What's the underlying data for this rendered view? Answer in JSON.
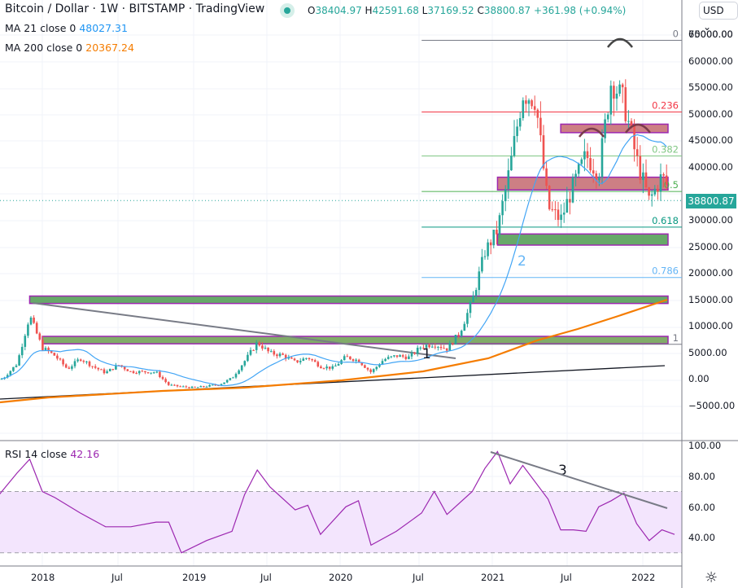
{
  "header": {
    "title": "Bitcoin / Dollar · 1W · BITSTAMP · TradingView",
    "ohlc": {
      "o_label": "O",
      "o": "38404.97",
      "h_label": "H",
      "h": "42591.68",
      "l_label": "L",
      "l": "37169.52",
      "c_label": "C",
      "c": "38800.87",
      "change": "+361.98 (+0.94%)"
    },
    "currency": "USD ⌄"
  },
  "indicators": [
    {
      "label": "MA 21 close 0",
      "value": "48027.31",
      "color": "#2196f3"
    },
    {
      "label": "MA 200 close 0",
      "value": "20367.24",
      "color": "#f57c00"
    }
  ],
  "rsi": {
    "label": "RSI 14 close",
    "value": "42.16",
    "color": "#9c27b0"
  },
  "last_price_tag": "38800.87",
  "colors": {
    "up": "#26a69a",
    "down": "#ef5350",
    "ma21": "#42a5f5",
    "ma200": "#f57c00",
    "rsi": "#9c27b0",
    "rsi_band": "#f3e5fd",
    "grid": "#f0f3fa",
    "axis": "#787b86"
  },
  "chart_data": [
    {
      "type": "candlestick",
      "title": "Bitcoin / Dollar · 1W · BITSTAMP",
      "ylabel": "USD",
      "ylim": [
        -5000,
        72000
      ],
      "y_ticks": [
        "70000.00",
        "65000.00",
        "60000.00",
        "55000.00",
        "50000.00",
        "45000.00",
        "40000.00",
        "35000.00",
        "30000.00",
        "25000.00",
        "20000.00",
        "15000.00",
        "10000.00",
        "5000.00",
        "0.00",
        "−5000.00"
      ],
      "x_ticks": [
        "2018",
        "Jul",
        "2019",
        "Jul",
        "2020",
        "Jul",
        "2021",
        "Jul",
        "2022"
      ],
      "grid": true,
      "close_path": [
        [
          "2017-09",
          4000
        ],
        [
          "2017-10",
          5500
        ],
        [
          "2017-11",
          8000
        ],
        [
          "2017-12",
          17000
        ],
        [
          "2018-01",
          11000
        ],
        [
          "2018-02",
          9500
        ],
        [
          "2018-03",
          7000
        ],
        [
          "2018-04",
          9000
        ],
        [
          "2018-05",
          7500
        ],
        [
          "2018-06",
          6300
        ],
        [
          "2018-07",
          7800
        ],
        [
          "2018-08",
          6500
        ],
        [
          "2018-09",
          6500
        ],
        [
          "2018-10",
          6400
        ],
        [
          "2018-11",
          4000
        ],
        [
          "2018-12",
          3700
        ],
        [
          "2019-01",
          3500
        ],
        [
          "2019-02",
          3800
        ],
        [
          "2019-03",
          4100
        ],
        [
          "2019-04",
          5300
        ],
        [
          "2019-05",
          8500
        ],
        [
          "2019-06",
          12000
        ],
        [
          "2019-07",
          10000
        ],
        [
          "2019-08",
          9600
        ],
        [
          "2019-09",
          8300
        ],
        [
          "2019-10",
          9200
        ],
        [
          "2019-11",
          7500
        ],
        [
          "2019-12",
          7200
        ],
        [
          "2020-01",
          9300
        ],
        [
          "2020-02",
          8600
        ],
        [
          "2020-03",
          6400
        ],
        [
          "2020-04",
          8800
        ],
        [
          "2020-05",
          9500
        ],
        [
          "2020-06",
          9200
        ],
        [
          "2020-07",
          11300
        ],
        [
          "2020-08",
          11700
        ],
        [
          "2020-09",
          10800
        ],
        [
          "2020-10",
          13800
        ],
        [
          "2020-11",
          19700
        ],
        [
          "2020-12",
          29000
        ],
        [
          "2021-01",
          33100
        ],
        [
          "2021-02",
          45000
        ],
        [
          "2021-03",
          58800
        ],
        [
          "2021-04",
          57700
        ],
        [
          "2021-05",
          37300
        ],
        [
          "2021-06",
          35000
        ],
        [
          "2021-07",
          41500
        ],
        [
          "2021-08",
          47100
        ],
        [
          "2021-09",
          43800
        ],
        [
          "2021-10",
          61300
        ],
        [
          "2021-11",
          57000
        ],
        [
          "2021-12",
          46300
        ],
        [
          "2022-01",
          38500
        ],
        [
          "2022-02",
          43200
        ],
        [
          "2022-03",
          38800
        ]
      ],
      "series": [
        {
          "name": "MA 21",
          "last": 48027.31
        },
        {
          "name": "MA 200",
          "last": 20367.24
        }
      ],
      "fibonacci": [
        {
          "level": "0",
          "price": 69000,
          "color": "#787b86"
        },
        {
          "level": "0.236",
          "price": 55500,
          "color": "#f23645"
        },
        {
          "level": "0.382",
          "price": 47200,
          "color": "#81c784"
        },
        {
          "level": "0.5",
          "price": 40500,
          "color": "#4caf50"
        },
        {
          "level": "0.618",
          "price": 33800,
          "color": "#089981"
        },
        {
          "level": "0.786",
          "price": 24300,
          "color": "#64b5f6"
        },
        {
          "level": "1",
          "price": 11700,
          "color": "#787b86"
        }
      ],
      "zones": [
        {
          "kind": "resistance",
          "top": 53200,
          "bottom": 51600,
          "x0": "2021-06",
          "color": "#c4686e"
        },
        {
          "kind": "resistance",
          "top": 43200,
          "bottom": 40800,
          "x0": "2021-01",
          "color": "#c4686e"
        },
        {
          "kind": "support",
          "top": 32500,
          "bottom": 30400,
          "x0": "2021-01",
          "color": "#4c9a4f"
        },
        {
          "kind": "support",
          "top": 20800,
          "bottom": 19400,
          "x0": "2017-12",
          "color": "#4c9a4f"
        },
        {
          "kind": "support",
          "top": 13200,
          "bottom": 11800,
          "x0": "2018-01",
          "color": "#6b9e4f"
        }
      ],
      "annotations": [
        "1",
        "2",
        "3"
      ],
      "last_price": 38800.87
    },
    {
      "type": "line",
      "title": "RSI 14 close",
      "ylim": [
        25,
        102
      ],
      "y_ticks": [
        "100.00",
        "80.00",
        "60.00",
        "40.00"
      ],
      "bands": {
        "upper": 70,
        "lower": 30
      },
      "x": [
        "2017-09",
        "2017-11",
        "2017-12",
        "2018-01",
        "2018-02",
        "2018-04",
        "2018-06",
        "2018-08",
        "2018-10",
        "2018-11",
        "2018-12",
        "2019-02",
        "2019-04",
        "2019-05",
        "2019-06",
        "2019-07",
        "2019-09",
        "2019-10",
        "2019-11",
        "2020-01",
        "2020-02",
        "2020-03",
        "2020-05",
        "2020-07",
        "2020-08",
        "2020-09",
        "2020-11",
        "2020-12",
        "2021-01",
        "2021-02",
        "2021-03",
        "2021-05",
        "2021-06",
        "2021-07",
        "2021-08",
        "2021-09",
        "2021-10",
        "2021-11",
        "2021-12",
        "2022-01",
        "2022-02",
        "2022-03"
      ],
      "values": [
        62,
        82,
        91,
        70,
        66,
        56,
        47,
        47,
        50,
        50,
        30,
        38,
        44,
        68,
        84,
        73,
        58,
        61,
        42,
        60,
        64,
        35,
        44,
        56,
        70,
        55,
        70,
        85,
        96,
        75,
        87,
        65,
        45,
        45,
        44,
        60,
        64,
        69,
        49,
        38,
        45,
        42
      ]
    }
  ]
}
